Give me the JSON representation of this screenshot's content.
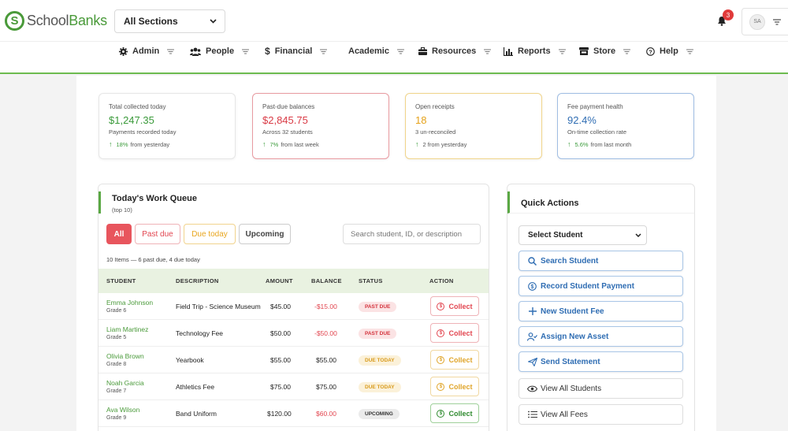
{
  "header": {
    "logo_letter": "S",
    "logo_text_a": "School",
    "logo_text_b": "Banks",
    "section_select": "All Sections",
    "notifications_count": "3",
    "user_initials": "SA"
  },
  "nav": {
    "items": [
      {
        "label": "Admin",
        "icon": "gear-icon"
      },
      {
        "label": "People",
        "icon": "people-icon"
      },
      {
        "label": "Financial",
        "icon": "dollar-icon"
      },
      {
        "label": "Academic",
        "icon": "none"
      },
      {
        "label": "Resources",
        "icon": "briefcase-icon"
      },
      {
        "label": "Reports",
        "icon": "bar-chart-icon"
      },
      {
        "label": "Store",
        "icon": "store-icon"
      },
      {
        "label": "Help",
        "icon": "help-icon"
      }
    ]
  },
  "stats": [
    {
      "label": "Total collected today",
      "value": "$1,247.35",
      "sub": "Payments recorded today",
      "change_pct": "18%",
      "change_text": "from yesterday",
      "color": "#3a9a3a",
      "border": "#e6e6e6"
    },
    {
      "label": "Past-due balances",
      "value": "$2,845.75",
      "sub": "Across 32 students",
      "change_pct": "7%",
      "change_text": "from last week",
      "color": "#d93a45",
      "border": "#e89aa0"
    },
    {
      "label": "Open receipts",
      "value": "18",
      "sub": "3 un-reconciled",
      "change_pct": "",
      "change_text": "2 from yesterday",
      "color": "#e5a21b",
      "border": "#f0d48a"
    },
    {
      "label": "Fee payment health",
      "value": "92.4%",
      "sub": "On-time collection rate",
      "change_pct": "5.6%",
      "change_text": "from last month",
      "color": "#2f6db3",
      "border": "#9fbde3"
    }
  ],
  "work_queue": {
    "title": "Today's Work Queue",
    "subtitle": "(top 10)",
    "filters": {
      "all": "All",
      "past_due": "Past due",
      "due_today": "Due today",
      "upcoming": "Upcoming"
    },
    "search_placeholder": "Search student, ID, or description",
    "count_text": "10 Items — 6 past due, 4 due today",
    "columns": {
      "student": "STUDENT",
      "description": "DESCRIPTION",
      "amount": "AMOUNT",
      "balance": "BALANCE",
      "status": "STATUS",
      "action": "ACTION"
    },
    "rows": [
      {
        "name": "Emma Johnson",
        "grade": "Grade 6",
        "description": "Field Trip - Science Museum",
        "amount": "$45.00",
        "balance": "-$15.00",
        "balance_color": "#e24650",
        "status": "PAST DUE",
        "status_type": "past",
        "action": "Collect",
        "action_type": "red"
      },
      {
        "name": "Liam Martinez",
        "grade": "Grade 5",
        "description": "Technology Fee",
        "amount": "$50.00",
        "balance": "-$50.00",
        "balance_color": "#e24650",
        "status": "PAST DUE",
        "status_type": "past",
        "action": "Collect",
        "action_type": "red"
      },
      {
        "name": "Olivia Brown",
        "grade": "Grade 8",
        "description": "Yearbook",
        "amount": "$55.00",
        "balance": "$55.00",
        "balance_color": "#222222",
        "status": "DUE TODAY",
        "status_type": "due",
        "action": "Collect",
        "action_type": "yel"
      },
      {
        "name": "Noah Garcia",
        "grade": "Grade 7",
        "description": "Athletics Fee",
        "amount": "$75.00",
        "balance": "$75.00",
        "balance_color": "#222222",
        "status": "DUE TODAY",
        "status_type": "due",
        "action": "Collect",
        "action_type": "yel"
      },
      {
        "name": "Ava Wilson",
        "grade": "Grade 9",
        "description": "Band Uniform",
        "amount": "$120.00",
        "balance": "$60.00",
        "balance_color": "#e24650",
        "status": "UPCOMING",
        "status_type": "up",
        "action": "Collect",
        "action_type": "grn"
      }
    ]
  },
  "quick_actions": {
    "title": "Quick Actions",
    "select_student": "Select Student",
    "buttons": [
      {
        "label": "Search Student",
        "icon": "search-icon",
        "style": "blue"
      },
      {
        "label": "Record Student Payment",
        "icon": "dollar-circle-icon",
        "style": "blue"
      },
      {
        "label": "New Student Fee",
        "icon": "plus-icon",
        "style": "blue"
      },
      {
        "label": "Assign New Asset",
        "icon": "user-assign-icon",
        "style": "blue"
      },
      {
        "label": "Send Statement",
        "icon": "send-icon",
        "style": "blue"
      },
      {
        "label": "View All Students",
        "icon": "eye-icon",
        "style": "gray"
      },
      {
        "label": "View All Fees",
        "icon": "list-icon",
        "style": "gray"
      }
    ]
  }
}
